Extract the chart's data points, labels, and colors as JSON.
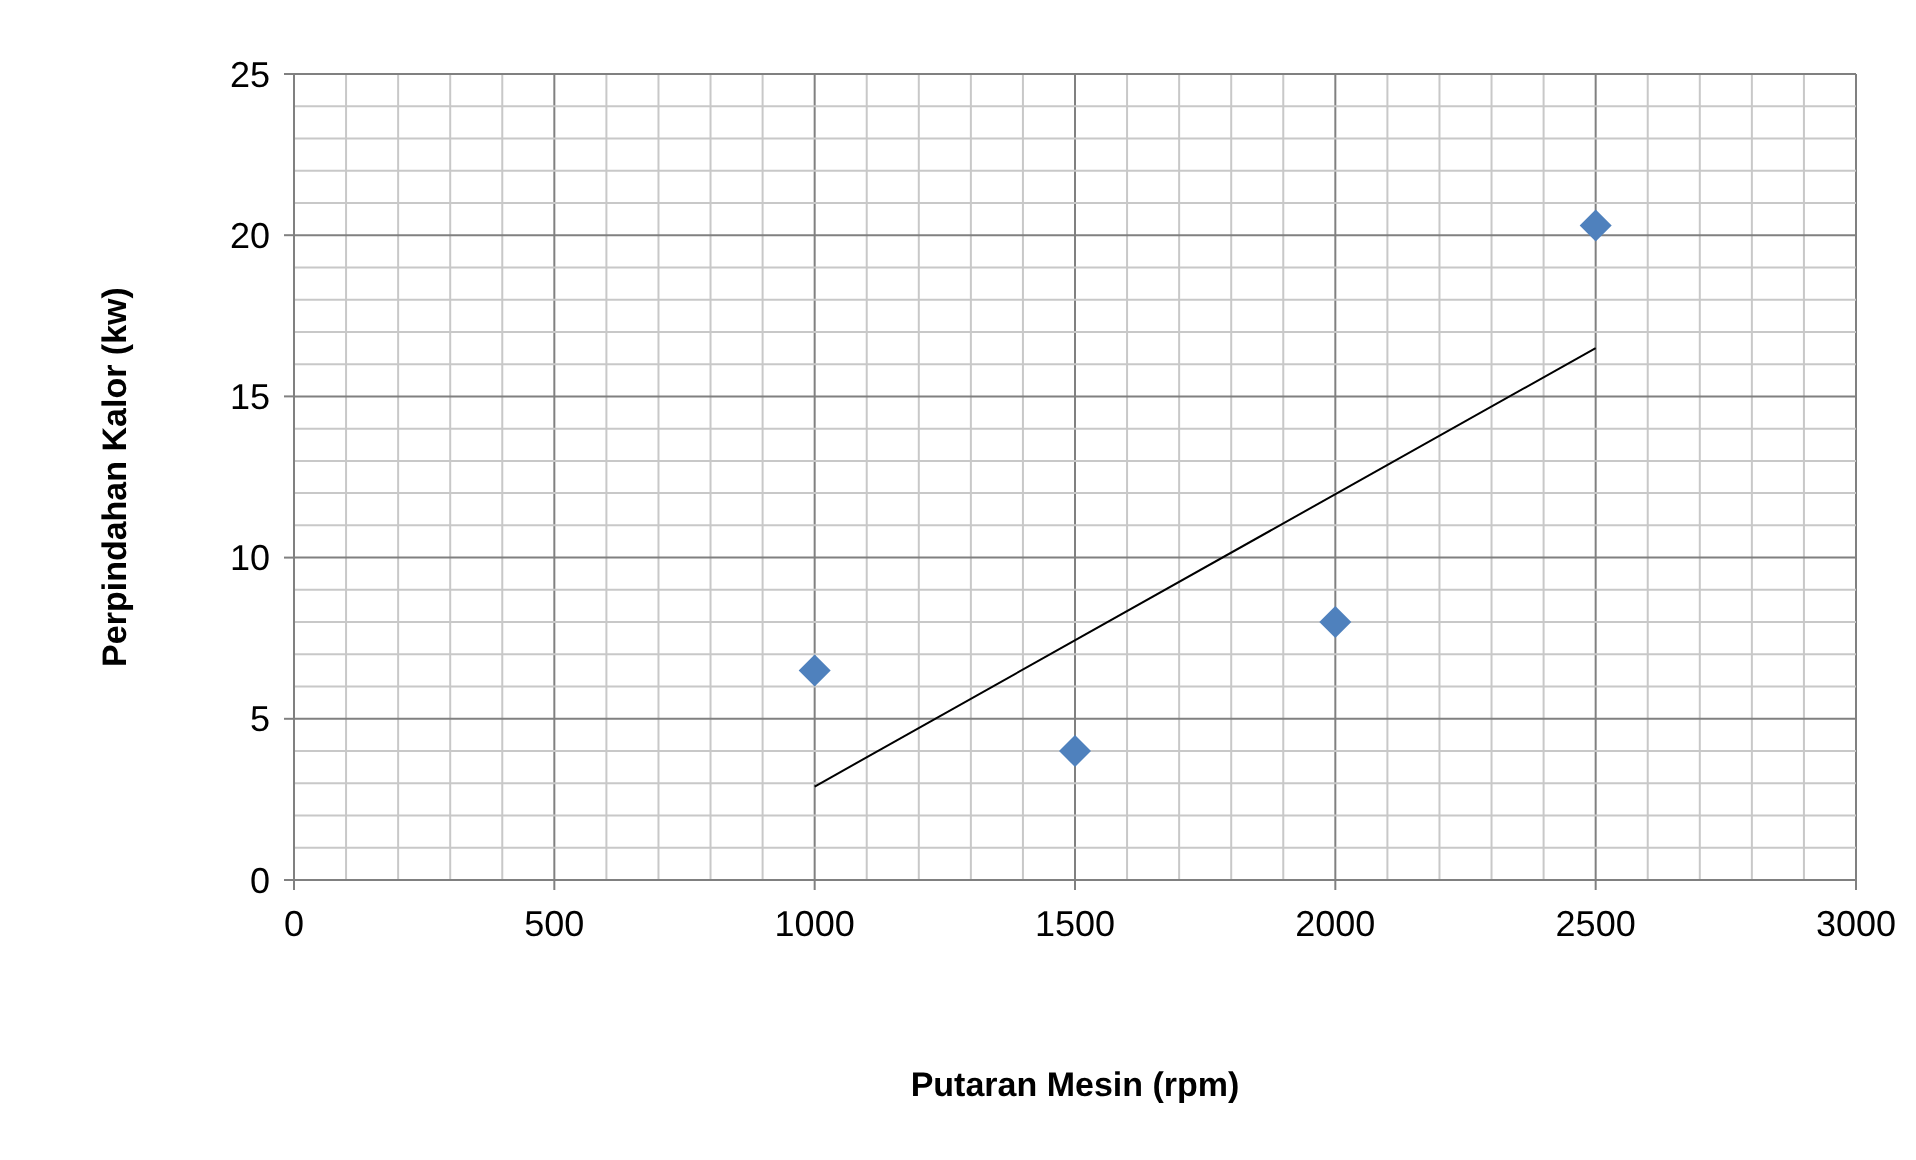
{
  "chart_data": {
    "type": "scatter",
    "xlabel": "Putaran Mesin (rpm)",
    "ylabel": "Perpindahan Kalor (kw)",
    "x": [
      1000,
      1500,
      2000,
      2500
    ],
    "series": [
      {
        "color": "#4f81bd",
        "marker": "diamond",
        "values": [
          6.5,
          4,
          8,
          20.3
        ]
      },
      {
        "type": "line",
        "color": "#000000",
        "marker": "none",
        "line_style": "solid",
        "x": [
          1000,
          2500
        ],
        "values": [
          2.9,
          16.5
        ]
      }
    ],
    "xlim": [
      0,
      3000
    ],
    "ylim": [
      0,
      25
    ],
    "xticks": [
      0,
      {
        "value": 100,
        "label": null
      },
      {
        "value": 200,
        "label": null
      },
      {
        "value": 300,
        "label": null
      },
      {
        "value": 400,
        "label": null
      },
      500,
      {
        "value": 600,
        "label": null
      },
      {
        "value": 700,
        "label": null
      },
      {
        "value": 800,
        "label": null
      },
      {
        "value": 900,
        "label": null
      },
      1000,
      {
        "value": 1100,
        "label": null
      },
      {
        "value": 1200,
        "label": null
      },
      {
        "value": 1300,
        "label": null
      },
      {
        "value": 1400,
        "label": null
      },
      1500,
      {
        "value": 1600,
        "label": null
      },
      {
        "value": 1700,
        "label": null
      },
      {
        "value": 1800,
        "label": null
      },
      {
        "value": 1900,
        "label": null
      },
      2000,
      {
        "value": 2100,
        "label": null
      },
      {
        "value": 2200,
        "label": null
      },
      {
        "value": 2300,
        "label": null
      },
      {
        "value": 2400,
        "label": null
      },
      2500,
      {
        "value": 2600,
        "label": null
      },
      {
        "value": 2700,
        "label": null
      },
      {
        "value": 2800,
        "label": null
      },
      {
        "value": 2900,
        "label": null
      },
      3000
    ],
    "yticks": [
      0,
      {
        "value": 1,
        "label": null
      },
      {
        "value": 2,
        "label": null
      },
      {
        "value": 3,
        "label": null
      },
      {
        "value": 4,
        "label": null
      },
      5,
      {
        "value": 6,
        "label": null
      },
      {
        "value": 7,
        "label": null
      },
      {
        "value": 8,
        "label": null
      },
      {
        "value": 9,
        "label": null
      },
      10,
      {
        "value": 11,
        "label": null
      },
      {
        "value": 12,
        "label": null
      },
      {
        "value": 13,
        "label": null
      },
      {
        "value": 14,
        "label": null
      },
      15,
      {
        "value": 16,
        "label": null
      },
      {
        "value": 17,
        "label": null
      },
      {
        "value": 18,
        "label": null
      },
      {
        "value": 19,
        "label": null
      },
      20,
      {
        "value": 21,
        "label": null
      },
      {
        "value": 22,
        "label": null
      },
      {
        "value": 23,
        "label": null
      },
      {
        "value": 24,
        "label": null
      },
      25
    ],
    "grid": true
  }
}
